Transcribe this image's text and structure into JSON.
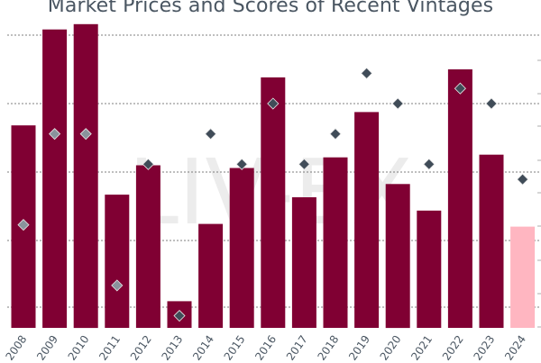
{
  "chart_data": {
    "type": "bar",
    "title": "Market Prices and Scores of Recent Vintages",
    "xlabel": "",
    "ylabel": "",
    "categories": [
      "2008",
      "2009",
      "2010",
      "2011",
      "2012",
      "2013",
      "2014",
      "2015",
      "2016",
      "2017",
      "2018",
      "2019",
      "2020",
      "2021",
      "2022",
      "2023",
      "2024"
    ],
    "series": [
      {
        "kind": "bar",
        "axis": "left",
        "values": [
          76,
          112,
          114,
          50,
          61,
          10,
          39,
          60,
          94,
          49,
          64,
          81,
          54,
          44,
          97,
          65,
          38
        ],
        "colors": [
          "#800033",
          "#800033",
          "#800033",
          "#800033",
          "#800033",
          "#800033",
          "#800033",
          "#800033",
          "#800033",
          "#800033",
          "#800033",
          "#800033",
          "#800033",
          "#800033",
          "#800033",
          "#800033",
          "#ffb6c1"
        ]
      },
      {
        "kind": "scatter",
        "marker": "diamond",
        "axis": "right",
        "values": [
          94,
          97,
          97,
          92,
          96,
          91,
          97,
          96,
          98,
          96,
          97,
          99,
          98,
          96,
          98.5,
          98,
          95.5
        ],
        "colors": [
          "#8a939c",
          "#8a939c",
          "#8a939c",
          "#8a939c",
          "#404c58",
          "#404c58",
          "#404c58",
          "#404c58",
          "#404c58",
          "#404c58",
          "#404c58",
          "#404c58",
          "#404c58",
          "#404c58",
          "#404c58",
          "#404c58",
          "#404c58"
        ]
      }
    ],
    "ylim": [
      0,
      120
    ],
    "y2lim": [
      90.6,
      100.2
    ],
    "grid": true,
    "legend": "none"
  },
  "watermark": {
    "text": "LIV-EX"
  },
  "colors": {
    "bar": "#800033",
    "bar_highlight": "#ffb6c1",
    "marker": "#404c58",
    "marker_light": "#8a939c",
    "grid": "#555555",
    "axis_text": "#4a5662"
  }
}
